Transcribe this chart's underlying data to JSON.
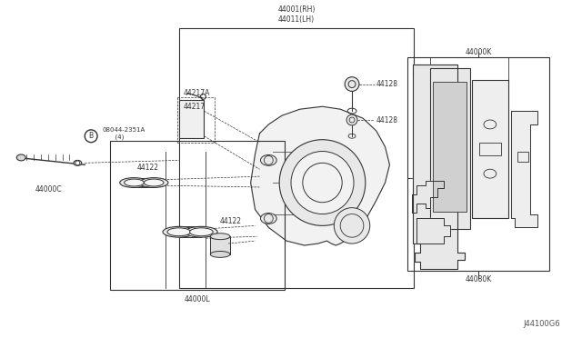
{
  "bg_color": "#ffffff",
  "line_color": "#333333",
  "diagram_id": "J44100G6",
  "figsize": [
    6.4,
    3.72
  ],
  "dpi": 100,
  "labels": {
    "bolt_ref": "B 08044-2351A\n  (4)",
    "44000C": "44000C",
    "44217A": "44217A",
    "44217": "44217",
    "44122_upper": "44122",
    "44122_lower": "44122",
    "44001RH": "44001(RH)\n44011(LH)",
    "44128_upper": "44128",
    "44128_lower": "44128",
    "44000L": "44000L",
    "44000K": "44000K",
    "44080K": "44080K"
  }
}
